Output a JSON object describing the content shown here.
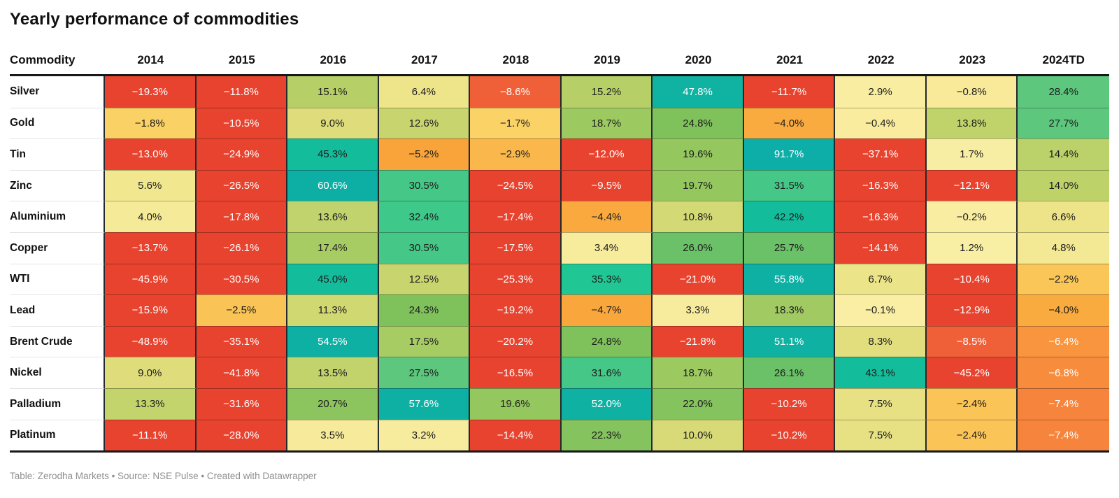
{
  "title": "Yearly performance of commodities",
  "footer": "Table: Zerodha Markets • Source: NSE Pulse • Created with Datawrapper",
  "columns": [
    "Commodity",
    "2014",
    "2015",
    "2016",
    "2017",
    "2018",
    "2019",
    "2020",
    "2021",
    "2022",
    "2023",
    "2024TD"
  ],
  "text_colors": {
    "w": "#ffffff",
    "d": "#1d1d1d"
  },
  "rows": [
    {
      "name": "Silver",
      "cells": [
        [
          "−19.3%",
          "#e8432e",
          "w"
        ],
        [
          "−11.8%",
          "#e8432e",
          "w"
        ],
        [
          "15.1%",
          "#b6d067",
          "d"
        ],
        [
          "6.4%",
          "#eee58b",
          "d"
        ],
        [
          "−8.6%",
          "#f06038",
          "w"
        ],
        [
          "15.2%",
          "#b6d067",
          "d"
        ],
        [
          "47.8%",
          "#10b3a1",
          "w"
        ],
        [
          "−11.7%",
          "#e8432e",
          "w"
        ],
        [
          "2.9%",
          "#f8eda0",
          "d"
        ],
        [
          "−0.8%",
          "#f9ea9a",
          "d"
        ],
        [
          "28.4%",
          "#5dc77e",
          "d"
        ]
      ]
    },
    {
      "name": "Gold",
      "cells": [
        [
          "−1.8%",
          "#fad164",
          "d"
        ],
        [
          "−10.5%",
          "#e8432e",
          "w"
        ],
        [
          "9.0%",
          "#dedc7b",
          "d"
        ],
        [
          "12.6%",
          "#c8d56f",
          "d"
        ],
        [
          "−1.7%",
          "#fad266",
          "d"
        ],
        [
          "18.7%",
          "#9dc961",
          "d"
        ],
        [
          "24.8%",
          "#7fc25c",
          "d"
        ],
        [
          "−4.0%",
          "#f9ab40",
          "d"
        ],
        [
          "−0.4%",
          "#f9ec9e",
          "d"
        ],
        [
          "13.8%",
          "#c0d36b",
          "d"
        ],
        [
          "27.7%",
          "#5dc77e",
          "d"
        ]
      ]
    },
    {
      "name": "Tin",
      "cells": [
        [
          "−13.0%",
          "#e8432e",
          "w"
        ],
        [
          "−24.9%",
          "#e8432e",
          "w"
        ],
        [
          "45.3%",
          "#13bd9c",
          "d"
        ],
        [
          "−5.2%",
          "#f9a43a",
          "d"
        ],
        [
          "−2.9%",
          "#fab74b",
          "d"
        ],
        [
          "−12.0%",
          "#e8432e",
          "w"
        ],
        [
          "19.6%",
          "#95c75f",
          "d"
        ],
        [
          "91.7%",
          "#0caea7",
          "w"
        ],
        [
          "−37.1%",
          "#e8432e",
          "w"
        ],
        [
          "1.7%",
          "#f8eea3",
          "d"
        ],
        [
          "14.4%",
          "#bbd169",
          "d"
        ]
      ]
    },
    {
      "name": "Zinc",
      "cells": [
        [
          "5.6%",
          "#f1e78f",
          "d"
        ],
        [
          "−26.5%",
          "#e8432e",
          "w"
        ],
        [
          "60.6%",
          "#0dafa5",
          "w"
        ],
        [
          "30.5%",
          "#45c787",
          "d"
        ],
        [
          "−24.5%",
          "#e8432e",
          "w"
        ],
        [
          "−9.5%",
          "#e8432e",
          "w"
        ],
        [
          "19.7%",
          "#95c75f",
          "d"
        ],
        [
          "31.5%",
          "#45c787",
          "d"
        ],
        [
          "−16.3%",
          "#e8432e",
          "w"
        ],
        [
          "−12.1%",
          "#e8432e",
          "w"
        ],
        [
          "14.0%",
          "#bed26a",
          "d"
        ]
      ]
    },
    {
      "name": "Aluminium",
      "cells": [
        [
          "4.0%",
          "#f5ea97",
          "d"
        ],
        [
          "−17.8%",
          "#e8432e",
          "w"
        ],
        [
          "13.6%",
          "#c1d36c",
          "d"
        ],
        [
          "32.4%",
          "#3ec88a",
          "d"
        ],
        [
          "−17.4%",
          "#e8432e",
          "w"
        ],
        [
          "−4.4%",
          "#f9a93e",
          "d"
        ],
        [
          "10.8%",
          "#d3d974",
          "d"
        ],
        [
          "42.2%",
          "#13bd9c",
          "d"
        ],
        [
          "−16.3%",
          "#e8432e",
          "w"
        ],
        [
          "−0.2%",
          "#f9eda1",
          "d"
        ],
        [
          "6.6%",
          "#ede489",
          "d"
        ]
      ]
    },
    {
      "name": "Copper",
      "cells": [
        [
          "−13.7%",
          "#e8432e",
          "w"
        ],
        [
          "−26.1%",
          "#e8432e",
          "w"
        ],
        [
          "17.4%",
          "#a8cc64",
          "d"
        ],
        [
          "30.5%",
          "#45c787",
          "d"
        ],
        [
          "−17.5%",
          "#e8432e",
          "w"
        ],
        [
          "3.4%",
          "#f7eb9c",
          "d"
        ],
        [
          "26.0%",
          "#6ac168",
          "d"
        ],
        [
          "25.7%",
          "#6ac168",
          "d"
        ],
        [
          "−14.1%",
          "#e8432e",
          "w"
        ],
        [
          "1.2%",
          "#f8efa5",
          "d"
        ],
        [
          "4.8%",
          "#f3e893",
          "d"
        ]
      ]
    },
    {
      "name": "WTI",
      "cells": [
        [
          "−45.9%",
          "#e8432e",
          "w"
        ],
        [
          "−30.5%",
          "#e8432e",
          "w"
        ],
        [
          "45.0%",
          "#13bd9c",
          "d"
        ],
        [
          "12.5%",
          "#c8d56f",
          "d"
        ],
        [
          "−25.3%",
          "#e8432e",
          "w"
        ],
        [
          "35.3%",
          "#20c794",
          "d"
        ],
        [
          "−21.0%",
          "#e8432e",
          "w"
        ],
        [
          "55.8%",
          "#0eb0a4",
          "w"
        ],
        [
          "6.7%",
          "#ece488",
          "d"
        ],
        [
          "−10.4%",
          "#e8432e",
          "w"
        ],
        [
          "−2.2%",
          "#fac658",
          "d"
        ]
      ]
    },
    {
      "name": "Lead",
      "cells": [
        [
          "−15.9%",
          "#e8432e",
          "w"
        ],
        [
          "−2.5%",
          "#fac355",
          "d"
        ],
        [
          "11.3%",
          "#d0d872",
          "d"
        ],
        [
          "24.3%",
          "#7fc25c",
          "d"
        ],
        [
          "−19.2%",
          "#e8432e",
          "w"
        ],
        [
          "−4.7%",
          "#f9a63c",
          "d"
        ],
        [
          "3.3%",
          "#f7ec9d",
          "d"
        ],
        [
          "18.3%",
          "#a1ca62",
          "d"
        ],
        [
          "−0.1%",
          "#f9eea3",
          "d"
        ],
        [
          "−12.9%",
          "#e8432e",
          "w"
        ],
        [
          "−4.0%",
          "#f9ab40",
          "d"
        ]
      ]
    },
    {
      "name": "Brent Crude",
      "cells": [
        [
          "−48.9%",
          "#e8432e",
          "w"
        ],
        [
          "−35.1%",
          "#e8432e",
          "w"
        ],
        [
          "54.5%",
          "#0eb0a4",
          "w"
        ],
        [
          "17.5%",
          "#a8cc64",
          "d"
        ],
        [
          "−20.2%",
          "#e8432e",
          "w"
        ],
        [
          "24.8%",
          "#7fc25c",
          "d"
        ],
        [
          "−21.8%",
          "#e8432e",
          "w"
        ],
        [
          "51.1%",
          "#0fb1a3",
          "w"
        ],
        [
          "8.3%",
          "#e2de7e",
          "d"
        ],
        [
          "−8.5%",
          "#f06038",
          "w"
        ],
        [
          "−6.4%",
          "#f8953e",
          "w"
        ]
      ]
    },
    {
      "name": "Nickel",
      "cells": [
        [
          "9.0%",
          "#dedc7b",
          "d"
        ],
        [
          "−41.8%",
          "#e8432e",
          "w"
        ],
        [
          "13.5%",
          "#c2d36c",
          "d"
        ],
        [
          "27.5%",
          "#5dc77e",
          "d"
        ],
        [
          "−16.5%",
          "#e8432e",
          "w"
        ],
        [
          "31.6%",
          "#45c787",
          "d"
        ],
        [
          "18.7%",
          "#9dc961",
          "d"
        ],
        [
          "26.1%",
          "#6ac168",
          "d"
        ],
        [
          "43.1%",
          "#13bd9c",
          "d"
        ],
        [
          "−45.2%",
          "#e8432e",
          "w"
        ],
        [
          "−6.8%",
          "#f78c3d",
          "w"
        ]
      ]
    },
    {
      "name": "Palladium",
      "cells": [
        [
          "13.3%",
          "#c3d46d",
          "d"
        ],
        [
          "−31.6%",
          "#e8432e",
          "w"
        ],
        [
          "20.7%",
          "#8cc45d",
          "d"
        ],
        [
          "57.6%",
          "#0eb0a4",
          "w"
        ],
        [
          "19.6%",
          "#95c75f",
          "d"
        ],
        [
          "52.0%",
          "#0fb1a3",
          "w"
        ],
        [
          "22.0%",
          "#84c35e",
          "d"
        ],
        [
          "−10.2%",
          "#e8432e",
          "w"
        ],
        [
          "7.5%",
          "#e7e183",
          "d"
        ],
        [
          "−2.4%",
          "#fac456",
          "d"
        ],
        [
          "−7.4%",
          "#f6843c",
          "w"
        ]
      ]
    },
    {
      "name": "Platinum",
      "cells": [
        [
          "−11.1%",
          "#e8432e",
          "w"
        ],
        [
          "−28.0%",
          "#e8432e",
          "w"
        ],
        [
          "3.5%",
          "#f7eb9b",
          "d"
        ],
        [
          "3.2%",
          "#f7ec9e",
          "d"
        ],
        [
          "−14.4%",
          "#e8432e",
          "w"
        ],
        [
          "22.3%",
          "#84c35e",
          "d"
        ],
        [
          "10.0%",
          "#d8da77",
          "d"
        ],
        [
          "−10.2%",
          "#e8432e",
          "w"
        ],
        [
          "7.5%",
          "#e7e183",
          "d"
        ],
        [
          "−2.4%",
          "#fac456",
          "d"
        ],
        [
          "−7.4%",
          "#f6843c",
          "w"
        ]
      ]
    }
  ],
  "chart_data": {
    "type": "heatmap",
    "title": "Yearly performance of commodities",
    "x": [
      "2014",
      "2015",
      "2016",
      "2017",
      "2018",
      "2019",
      "2020",
      "2021",
      "2022",
      "2023",
      "2024TD"
    ],
    "unit": "%",
    "rows": [
      "Silver",
      "Gold",
      "Tin",
      "Zinc",
      "Aluminium",
      "Copper",
      "WTI",
      "Lead",
      "Brent Crude",
      "Nickel",
      "Palladium",
      "Platinum"
    ],
    "values": [
      [
        -19.3,
        -11.8,
        15.1,
        6.4,
        -8.6,
        15.2,
        47.8,
        -11.7,
        2.9,
        -0.8,
        28.4
      ],
      [
        -1.8,
        -10.5,
        9.0,
        12.6,
        -1.7,
        18.7,
        24.8,
        -4.0,
        -0.4,
        13.8,
        27.7
      ],
      [
        -13.0,
        -24.9,
        45.3,
        -5.2,
        -2.9,
        -12.0,
        19.6,
        91.7,
        -37.1,
        1.7,
        14.4
      ],
      [
        5.6,
        -26.5,
        60.6,
        30.5,
        -24.5,
        -9.5,
        19.7,
        31.5,
        -16.3,
        -12.1,
        14.0
      ],
      [
        4.0,
        -17.8,
        13.6,
        32.4,
        -17.4,
        -4.4,
        10.8,
        42.2,
        -16.3,
        -0.2,
        6.6
      ],
      [
        -13.7,
        -26.1,
        17.4,
        30.5,
        -17.5,
        3.4,
        26.0,
        25.7,
        -14.1,
        1.2,
        4.8
      ],
      [
        -45.9,
        -30.5,
        45.0,
        12.5,
        -25.3,
        35.3,
        -21.0,
        55.8,
        6.7,
        -10.4,
        -2.2
      ],
      [
        -15.9,
        -2.5,
        11.3,
        24.3,
        -19.2,
        -4.7,
        3.3,
        18.3,
        -0.1,
        -12.9,
        -4.0
      ],
      [
        -48.9,
        -35.1,
        54.5,
        17.5,
        -20.2,
        24.8,
        -21.8,
        51.1,
        8.3,
        -8.5,
        -6.4
      ],
      [
        9.0,
        -41.8,
        13.5,
        27.5,
        -16.5,
        31.6,
        18.7,
        26.1,
        43.1,
        -45.2,
        -6.8
      ],
      [
        13.3,
        -31.6,
        20.7,
        57.6,
        19.6,
        52.0,
        22.0,
        -10.2,
        7.5,
        -2.4,
        -7.4
      ],
      [
        -11.1,
        -28.0,
        3.5,
        3.2,
        -14.4,
        22.3,
        10.0,
        -10.2,
        7.5,
        -2.4,
        -7.4
      ]
    ],
    "color_scale": {
      "strong_negative": "#e8432e",
      "neutral": "#f9f0a6",
      "strong_positive": "#0caea7"
    },
    "legend_position": "none",
    "grid": "cell-borders"
  }
}
